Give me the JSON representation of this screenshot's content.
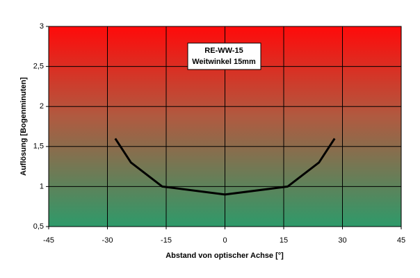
{
  "chart_data": {
    "type": "line",
    "title_lines": [
      "RE-WW-15",
      "Weitwinkel 15mm"
    ],
    "x_label": "Abstand von optischer Achse [°]",
    "y_label": "Auflösung [Bogenminuten]",
    "x": [
      -28,
      -24,
      -16,
      0,
      16,
      24,
      28
    ],
    "series": [
      {
        "color": "#000000",
        "values": [
          1.6,
          1.3,
          1.0,
          0.9,
          1.0,
          1.3,
          1.6
        ]
      }
    ],
    "xlim": [
      -45,
      45
    ],
    "xticks": [
      -45,
      -30,
      -15,
      0,
      15,
      30,
      45
    ],
    "ylim": [
      0.5,
      3
    ],
    "yticks": [
      {
        "value": 0.5,
        "label": "0,5"
      },
      1,
      {
        "value": 1.5,
        "label": "1,5"
      },
      2,
      {
        "value": 2.5,
        "label": "2,5"
      },
      3
    ],
    "grid": true
  }
}
